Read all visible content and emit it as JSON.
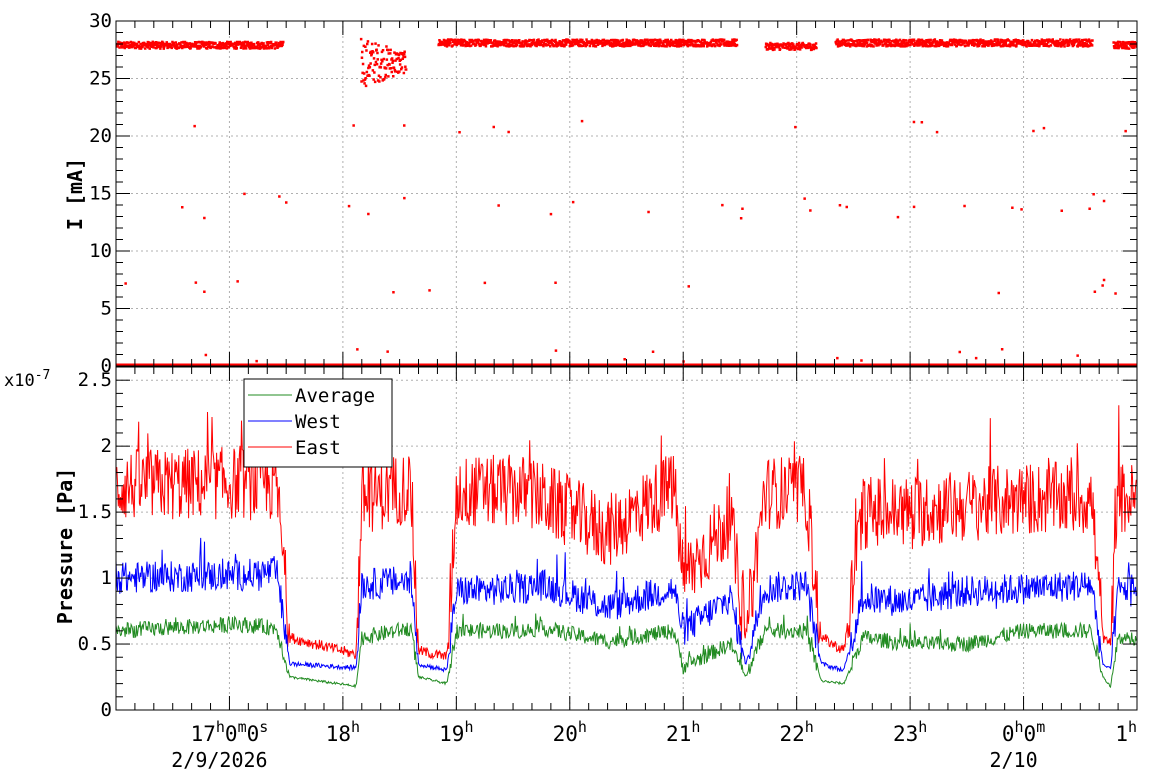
{
  "chart_data": [
    {
      "type": "scatter",
      "ylabel": "I [mA]",
      "ylim": [
        0,
        30
      ],
      "y_ticks": [
        "0",
        "5",
        "10",
        "15",
        "20",
        "25",
        "30"
      ],
      "grid": true,
      "series": [
        {
          "color": "#ff0000",
          "segments": [
            {
              "x_start": "16:00",
              "x_end": "17:28",
              "y_level": 28.0,
              "spread": 0.3
            },
            {
              "x_start": "18:09",
              "x_end": "18:33",
              "y_level": 26.5,
              "spread": 2.2
            },
            {
              "x_start": "18:50",
              "x_end": "21:28",
              "y_level": 28.2,
              "spread": 0.3
            },
            {
              "x_start": "21:43",
              "x_end": "22:10",
              "y_level": 27.9,
              "spread": 0.3
            },
            {
              "x_start": "22:20",
              "x_end": "00:36",
              "y_level": 28.2,
              "spread": 0.3
            },
            {
              "x_start": "00:47",
              "x_end": "01:00",
              "y_level": 28.0,
              "spread": 0.3
            }
          ],
          "baseline_value": 0,
          "outlier_levels_mA": [
            21,
            14.5,
            13.5,
            7,
            1
          ]
        }
      ]
    },
    {
      "type": "line",
      "ylabel": "Pressure [Pa]",
      "y_multiplier": "x10",
      "y_multiplier_exp": "-7",
      "ylim": [
        0,
        2.6
      ],
      "y_ticks": [
        "0",
        "0.5",
        "1",
        "1.5",
        "2",
        "2.5"
      ],
      "grid": true,
      "legend_position": "top-left",
      "series": [
        {
          "name": "Average",
          "color": "#228b22",
          "points": [
            [
              "16:00",
              0.6
            ],
            [
              "17:05",
              0.65
            ],
            [
              "17:25",
              0.62
            ],
            [
              "17:32",
              0.25
            ],
            [
              "18:07",
              0.18
            ],
            [
              "18:10",
              0.55
            ],
            [
              "18:36",
              0.62
            ],
            [
              "18:40",
              0.25
            ],
            [
              "18:55",
              0.2
            ],
            [
              "19:00",
              0.6
            ],
            [
              "19:35",
              0.6
            ],
            [
              "19:46",
              0.62
            ],
            [
              "20:20",
              0.52
            ],
            [
              "20:55",
              0.6
            ],
            [
              "21:00",
              0.33
            ],
            [
              "21:25",
              0.5
            ],
            [
              "21:33",
              0.25
            ],
            [
              "21:43",
              0.6
            ],
            [
              "22:05",
              0.6
            ],
            [
              "22:13",
              0.22
            ],
            [
              "22:25",
              0.2
            ],
            [
              "22:35",
              0.55
            ],
            [
              "23:00",
              0.5
            ],
            [
              "23:30",
              0.5
            ],
            [
              "00:00",
              0.6
            ],
            [
              "00:36",
              0.6
            ],
            [
              "00:42",
              0.25
            ],
            [
              "00:46",
              0.18
            ],
            [
              "00:50",
              0.55
            ],
            [
              "01:00",
              0.55
            ]
          ]
        },
        {
          "name": "West",
          "color": "#0000ff",
          "points": [
            [
              "16:00",
              1.0
            ],
            [
              "17:05",
              1.02
            ],
            [
              "17:25",
              1.05
            ],
            [
              "17:32",
              0.35
            ],
            [
              "18:07",
              0.32
            ],
            [
              "18:10",
              0.95
            ],
            [
              "18:36",
              0.98
            ],
            [
              "18:40",
              0.35
            ],
            [
              "18:55",
              0.3
            ],
            [
              "19:00",
              0.9
            ],
            [
              "19:35",
              0.92
            ],
            [
              "19:46",
              0.95
            ],
            [
              "20:20",
              0.78
            ],
            [
              "20:55",
              0.92
            ],
            [
              "21:00",
              0.6
            ],
            [
              "21:25",
              0.85
            ],
            [
              "21:33",
              0.35
            ],
            [
              "21:43",
              0.92
            ],
            [
              "22:05",
              0.95
            ],
            [
              "22:13",
              0.35
            ],
            [
              "22:25",
              0.3
            ],
            [
              "22:35",
              0.85
            ],
            [
              "23:00",
              0.82
            ],
            [
              "23:30",
              0.9
            ],
            [
              "00:00",
              0.92
            ],
            [
              "00:36",
              0.95
            ],
            [
              "00:42",
              0.35
            ],
            [
              "00:46",
              0.3
            ],
            [
              "00:50",
              0.9
            ],
            [
              "01:00",
              0.95
            ]
          ]
        },
        {
          "name": "East",
          "color": "#ff0000",
          "points": [
            [
              "16:00",
              1.7
            ],
            [
              "17:05",
              1.72
            ],
            [
              "17:25",
              1.7
            ],
            [
              "17:32",
              0.55
            ],
            [
              "18:07",
              0.42
            ],
            [
              "18:10",
              1.6
            ],
            [
              "18:36",
              1.7
            ],
            [
              "18:40",
              0.45
            ],
            [
              "18:55",
              0.4
            ],
            [
              "19:00",
              1.65
            ],
            [
              "19:35",
              1.66
            ],
            [
              "19:46",
              1.6
            ],
            [
              "20:20",
              1.35
            ],
            [
              "20:55",
              1.7
            ],
            [
              "21:00",
              1.0
            ],
            [
              "21:25",
              1.45
            ],
            [
              "21:33",
              0.55
            ],
            [
              "21:43",
              1.65
            ],
            [
              "22:05",
              1.65
            ],
            [
              "22:13",
              0.55
            ],
            [
              "22:25",
              0.45
            ],
            [
              "22:35",
              1.5
            ],
            [
              "23:00",
              1.5
            ],
            [
              "23:30",
              1.55
            ],
            [
              "00:00",
              1.6
            ],
            [
              "00:36",
              1.6
            ],
            [
              "00:42",
              0.55
            ],
            [
              "00:46",
              0.5
            ],
            [
              "00:50",
              1.6
            ],
            [
              "01:00",
              1.6
            ]
          ]
        }
      ]
    }
  ],
  "x_axis": {
    "range": [
      "16:00",
      "01:00"
    ],
    "ticks": [
      {
        "pos": "17:00",
        "base": "17",
        "sup_h": "h",
        "mid": "0",
        "sup_m": "m",
        "mid2": "0",
        "sup_s": "s"
      },
      {
        "pos": "18:00",
        "base": "18",
        "sup_h": "h"
      },
      {
        "pos": "19:00",
        "base": "19",
        "sup_h": "h"
      },
      {
        "pos": "20:00",
        "base": "20",
        "sup_h": "h"
      },
      {
        "pos": "21:00",
        "base": "21",
        "sup_h": "h"
      },
      {
        "pos": "22:00",
        "base": "22",
        "sup_h": "h"
      },
      {
        "pos": "23:00",
        "base": "23",
        "sup_h": "h"
      },
      {
        "pos": "00:00",
        "base": "0",
        "sup_h": "h",
        "mid": "0",
        "sup_m": "m"
      },
      {
        "pos": "01:00",
        "base": "1",
        "sup_h": "h"
      }
    ],
    "date_labels": [
      {
        "pos": "17:00",
        "text": "2/9/2026"
      },
      {
        "pos": "00:00",
        "text": "2/10"
      }
    ]
  }
}
